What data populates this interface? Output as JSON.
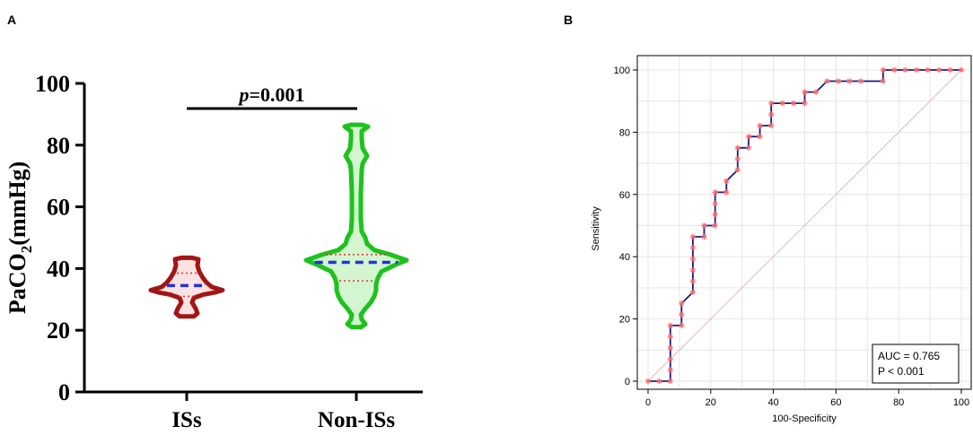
{
  "chart_data": [
    {
      "panel": "A",
      "type": "violin",
      "ylabel": "PaCO",
      "ylabel_subscript": "2",
      "ylabel_suffix": "(mmHg)",
      "ylim": [
        0,
        100
      ],
      "yticks": [
        "0",
        "20",
        "40",
        "60",
        "80",
        "100"
      ],
      "categories": [
        "ISs",
        "Non-ISs"
      ],
      "series": [
        {
          "name": "ISs",
          "color": "#a31515",
          "fill": "#fde2e2",
          "min": 24.5,
          "q1": 31,
          "median": 34.5,
          "q3": 38.5,
          "max": 43.5
        },
        {
          "name": "Non-ISs",
          "color": "#1dc21d",
          "fill": "#d3f5cf",
          "min": 21,
          "q1": 36,
          "median": 42,
          "q3": 44.5,
          "max": 86
        }
      ],
      "annotation": {
        "p_label": "p",
        "p_value": "=0.001"
      }
    },
    {
      "panel": "B",
      "type": "line",
      "xlabel": "100-Specificity",
      "ylabel": "Sensitivity",
      "xlim": [
        0,
        100
      ],
      "ylim": [
        0,
        100
      ],
      "xticks": [
        "0",
        "20",
        "40",
        "60",
        "80",
        "100"
      ],
      "yticks": [
        "0",
        "20",
        "40",
        "60",
        "80",
        "100"
      ],
      "curve_color": "#1a1a80",
      "marker_color": "#ff6666",
      "diagonal_color": "#e8b7b7",
      "points": [
        [
          0,
          0
        ],
        [
          3.6,
          0
        ],
        [
          7.1,
          0
        ],
        [
          7.1,
          3.6
        ],
        [
          7.1,
          7.1
        ],
        [
          7.1,
          10.7
        ],
        [
          7.1,
          14.3
        ],
        [
          7.1,
          17.9
        ],
        [
          10.7,
          17.9
        ],
        [
          10.7,
          21.4
        ],
        [
          10.7,
          25
        ],
        [
          14.3,
          28.6
        ],
        [
          14.3,
          32.1
        ],
        [
          14.3,
          35.7
        ],
        [
          14.3,
          39.3
        ],
        [
          14.3,
          42.9
        ],
        [
          14.3,
          46.4
        ],
        [
          17.9,
          46.4
        ],
        [
          17.9,
          50
        ],
        [
          21.4,
          50
        ],
        [
          21.4,
          53.6
        ],
        [
          21.4,
          57.1
        ],
        [
          21.4,
          60.7
        ],
        [
          25,
          60.7
        ],
        [
          25,
          64.3
        ],
        [
          28.6,
          67.9
        ],
        [
          28.6,
          71.4
        ],
        [
          28.6,
          75
        ],
        [
          32.1,
          75
        ],
        [
          32.1,
          78.6
        ],
        [
          35.7,
          78.6
        ],
        [
          35.7,
          82.1
        ],
        [
          39.3,
          82.1
        ],
        [
          39.3,
          85.7
        ],
        [
          39.3,
          89.3
        ],
        [
          42.9,
          89.3
        ],
        [
          46.4,
          89.3
        ],
        [
          50,
          89.3
        ],
        [
          50,
          92.9
        ],
        [
          53.6,
          92.9
        ],
        [
          57.1,
          96.4
        ],
        [
          60.7,
          96.4
        ],
        [
          64.3,
          96.4
        ],
        [
          67.9,
          96.4
        ],
        [
          75,
          96.4
        ],
        [
          75,
          100
        ],
        [
          78.6,
          100
        ],
        [
          82.1,
          100
        ],
        [
          85.7,
          100
        ],
        [
          89.3,
          100
        ],
        [
          92.9,
          100
        ],
        [
          96.4,
          100
        ],
        [
          100,
          100
        ]
      ],
      "legend": {
        "auc": "AUC = 0.765",
        "p": "P < 0.001",
        "placement": "bottom-right"
      }
    }
  ],
  "panels": {
    "a_letter": "A",
    "b_letter": "B"
  }
}
